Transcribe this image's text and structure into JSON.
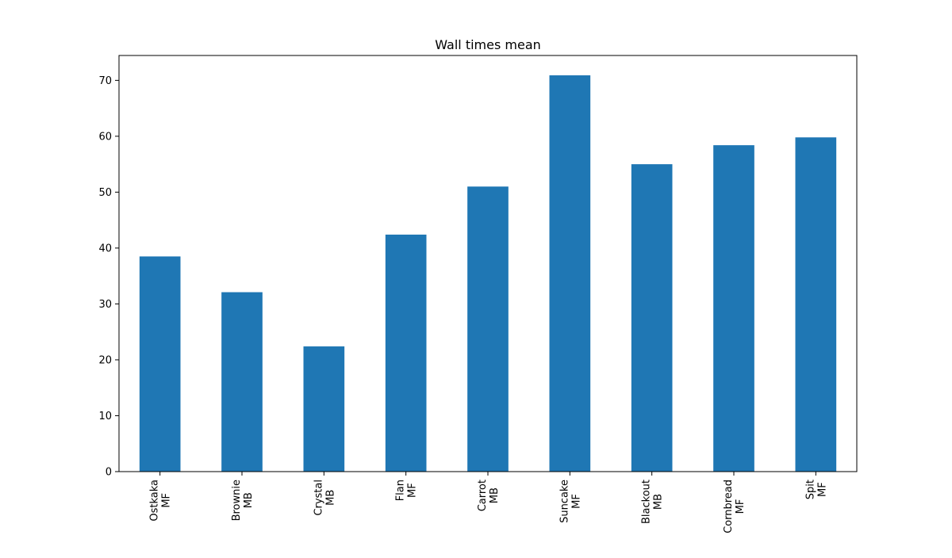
{
  "chart_data": {
    "type": "bar",
    "title": "Wall times mean",
    "xlabel": "",
    "ylabel": "",
    "categories": [
      [
        "Ostkaka",
        "MF"
      ],
      [
        "Brownie",
        "MB"
      ],
      [
        "Crystal",
        "MB"
      ],
      [
        "Flan",
        "MF"
      ],
      [
        "Carrot",
        "MB"
      ],
      [
        "Suncake",
        "MF"
      ],
      [
        "Blackout",
        "MB"
      ],
      [
        "Cornbread",
        "MF"
      ],
      [
        "Spit",
        "MF"
      ]
    ],
    "values": [
      38.5,
      32.1,
      22.4,
      42.4,
      51.0,
      70.9,
      55.0,
      58.4,
      59.8
    ],
    "ylim": [
      0,
      74.45
    ],
    "yticks": [
      0,
      10,
      20,
      30,
      40,
      50,
      60,
      70
    ],
    "grid": false,
    "legend": "none",
    "bar_color": "#1f77b4"
  }
}
